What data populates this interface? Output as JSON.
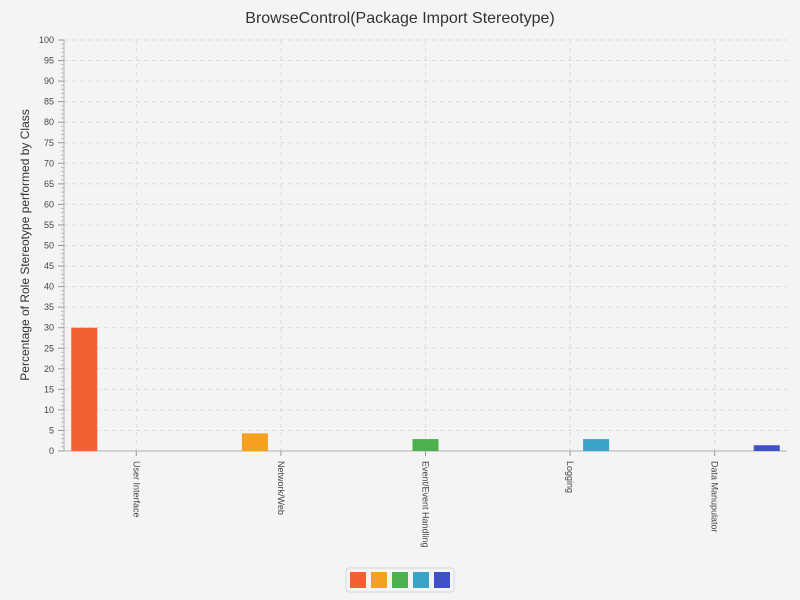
{
  "chart_data": {
    "type": "bar",
    "title": "BrowseControl(Package Import Stereotype)",
    "xlabel": "",
    "ylabel": "Percentage of Role Stereotype performed by Class",
    "ylim": [
      0,
      100
    ],
    "y_major_step": 5,
    "y_minor_step": 1,
    "grid": true,
    "legend_position": "bottom",
    "categories": [
      "User Interface",
      "Network/Web",
      "Event/Event Handling",
      "Logging",
      "Data Manupulator"
    ],
    "series": [
      {
        "color": "#f06030",
        "values": [
          30,
          0,
          0,
          0,
          0
        ]
      },
      {
        "color": "#f5a020",
        "values": [
          0,
          4.3,
          0,
          0,
          0
        ]
      },
      {
        "color": "#4caf50",
        "values": [
          0,
          0,
          2.9,
          0,
          0
        ]
      },
      {
        "color": "#3ba3c5",
        "values": [
          0,
          0,
          0,
          2.9,
          0
        ]
      },
      {
        "color": "#4050c8",
        "values": [
          0,
          0,
          0,
          0,
          1.4
        ]
      }
    ]
  }
}
